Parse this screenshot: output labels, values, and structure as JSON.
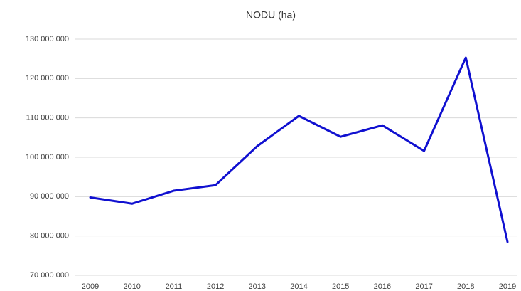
{
  "chart_data": {
    "type": "line",
    "title": "NODU (ha)",
    "categories": [
      "2009",
      "2010",
      "2011",
      "2012",
      "2013",
      "2014",
      "2015",
      "2016",
      "2017",
      "2018",
      "2019"
    ],
    "values": [
      89800000,
      88200000,
      91500000,
      92900000,
      102800000,
      110500000,
      105200000,
      108100000,
      101600000,
      125300000,
      78500000
    ],
    "color": "#1010d0",
    "ylim": [
      70000000,
      130000000
    ],
    "yticks": [
      {
        "value": 70000000,
        "label": "70 000 000"
      },
      {
        "value": 80000000,
        "label": "80 000 000"
      },
      {
        "value": 90000000,
        "label": "90 000 000"
      },
      {
        "value": 100000000,
        "label": "100 000 000"
      },
      {
        "value": 110000000,
        "label": "110 000 000"
      },
      {
        "value": 120000000,
        "label": "120 000 000"
      },
      {
        "value": 130000000,
        "label": "130 000 000"
      }
    ],
    "grid": true
  }
}
